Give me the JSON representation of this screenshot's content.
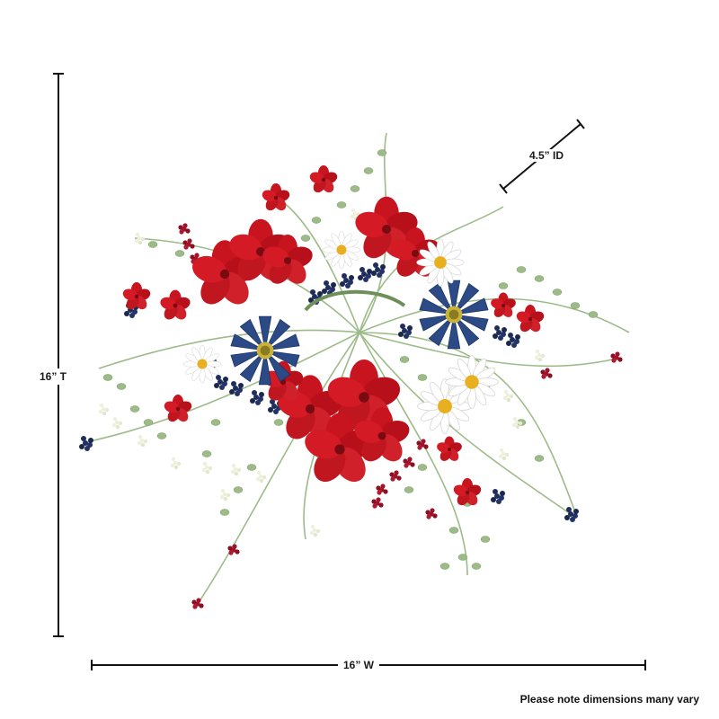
{
  "dimensions": {
    "height_label": "16” T",
    "width_label": "16” W",
    "inner_diameter_label": "4.5” ID"
  },
  "footnote": "Please note dimensions many vary",
  "colors": {
    "red_flower": "#c8141e",
    "blue_flower": "#2b4a86",
    "white_flower": "#ffffff",
    "flower_center": "#e8b020",
    "foliage": "#8fb07a",
    "berry_navy": "#1f2e5c",
    "berry_red": "#a0142a",
    "dimension_line": "#111111"
  }
}
